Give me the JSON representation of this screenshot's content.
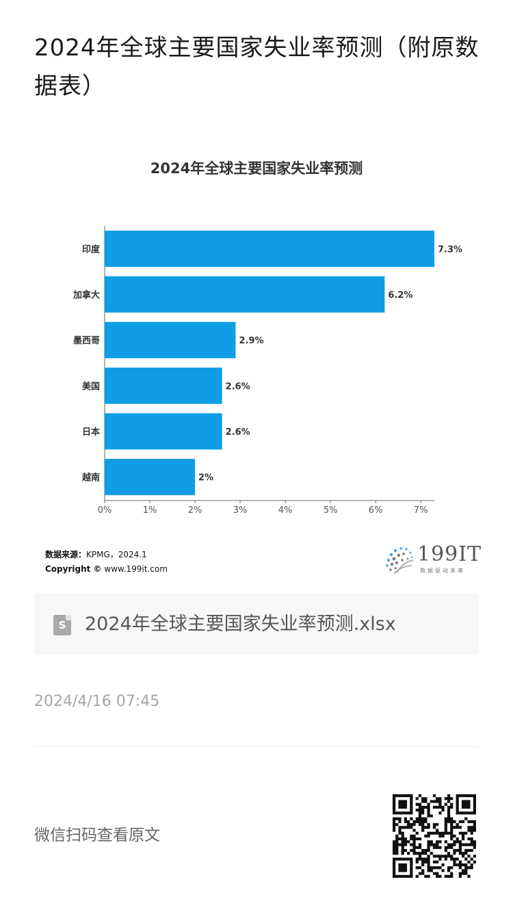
{
  "article": {
    "title": "2024年全球主要国家失业率预测（附原数据表）"
  },
  "chart_data": {
    "type": "bar",
    "orientation": "horizontal",
    "title": "2024年全球主要国家失业率预测",
    "categories": [
      "印度",
      "加拿大",
      "墨西哥",
      "美国",
      "日本",
      "越南"
    ],
    "values": [
      7.3,
      6.2,
      2.9,
      2.6,
      2.6,
      2.0
    ],
    "data_labels": [
      "7.3%",
      "6.2%",
      "2.9%",
      "2.6%",
      "2.6%",
      "2%"
    ],
    "xlim": [
      0,
      7.3
    ],
    "x_ticks": [
      0,
      1,
      2,
      3,
      4,
      5,
      6,
      7
    ],
    "x_tick_labels": [
      "0%",
      "1%",
      "2%",
      "3%",
      "4%",
      "5%",
      "6%",
      "7%"
    ],
    "xlabel": "",
    "ylabel": "",
    "grid": false,
    "legend": "none",
    "bar_color": "#0f9de5"
  },
  "source": {
    "label": "数据来源：",
    "text": "KPMG，2024.1",
    "copyright_label": "Copyright ©",
    "copyright_text": "www.199it.com"
  },
  "logo": {
    "text": "199IT",
    "subtitle": "数据驱动未来"
  },
  "file": {
    "icon": "spreadsheet-file-icon",
    "icon_letter": "S",
    "name": "2024年全球主要国家失业率预测.xlsx"
  },
  "meta": {
    "timestamp": "2024/4/16 07:45",
    "scan_text": "微信扫码查看原文"
  },
  "colors": {
    "accent": "#0f9de5",
    "muted_text": "#a6a6a6"
  }
}
